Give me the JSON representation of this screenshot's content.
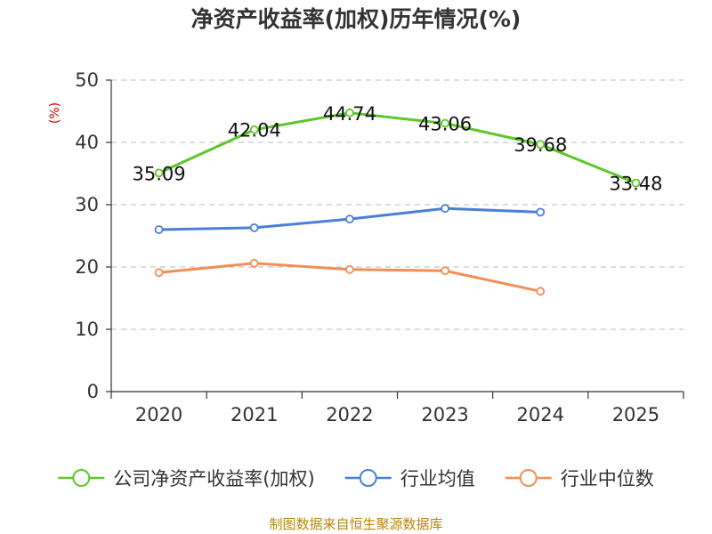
{
  "chart_data": {
    "type": "line",
    "title": "净资产收益率(加权)历年情况(%)",
    "ylabel": "(%)",
    "xlabel": "",
    "categories": [
      "2020",
      "2021",
      "2022",
      "2023",
      "2024",
      "2025"
    ],
    "ylim": [
      0,
      50
    ],
    "yticks": [
      0,
      10,
      20,
      30,
      40,
      50
    ],
    "grid": true,
    "legend_position": "bottom",
    "series": [
      {
        "name": "公司净资产收益率(加权)",
        "color": "#5dc72b",
        "values": [
          35.09,
          42.04,
          44.74,
          43.06,
          39.68,
          33.48
        ],
        "labels": [
          "35.09",
          "42.04",
          "44.74",
          "43.06",
          "39.68",
          "33.48"
        ],
        "show_labels": true
      },
      {
        "name": "行业均值",
        "color": "#4a7fd8",
        "values": [
          26.0,
          26.3,
          27.7,
          29.4,
          28.8,
          null
        ],
        "show_labels": false
      },
      {
        "name": "行业中位数",
        "color": "#f28e57",
        "values": [
          19.1,
          20.6,
          19.6,
          19.4,
          16.1,
          null
        ],
        "show_labels": false
      }
    ]
  },
  "footer": {
    "source": "制图数据来自恒生聚源数据库"
  }
}
